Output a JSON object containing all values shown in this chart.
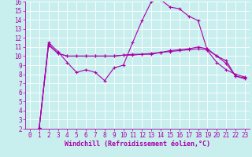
{
  "xlabel": "Windchill (Refroidissement éolien,°C)",
  "xlim": [
    -0.5,
    23.5
  ],
  "ylim": [
    2,
    16
  ],
  "yticks": [
    2,
    3,
    4,
    5,
    6,
    7,
    8,
    9,
    10,
    11,
    12,
    13,
    14,
    15,
    16
  ],
  "xticks": [
    0,
    1,
    2,
    3,
    4,
    5,
    6,
    7,
    8,
    9,
    10,
    11,
    12,
    13,
    14,
    15,
    16,
    17,
    18,
    19,
    20,
    21,
    22,
    23
  ],
  "background_color": "#c8eeee",
  "grid_color": "#aadddd",
  "line_color": "#aa00aa",
  "line1_x": [
    1,
    2,
    3,
    4,
    5,
    6,
    7,
    8,
    9,
    10,
    11,
    12,
    13,
    14,
    15,
    16,
    17,
    18,
    19,
    20,
    21,
    22,
    23
  ],
  "line1_y": [
    2.1,
    11.5,
    10.5,
    9.3,
    8.2,
    8.5,
    8.2,
    7.3,
    8.7,
    9.0,
    11.5,
    13.9,
    16.0,
    16.2,
    15.4,
    15.2,
    14.4,
    13.9,
    10.6,
    9.3,
    8.5,
    8.0,
    7.7
  ],
  "line2_x": [
    1,
    2,
    3,
    4,
    5,
    6,
    7,
    8,
    9,
    10,
    11,
    12,
    13,
    14,
    15,
    16,
    17,
    18,
    19,
    20,
    21,
    22,
    23
  ],
  "line2_y": [
    2.1,
    11.2,
    10.3,
    10.0,
    10.0,
    10.0,
    10.0,
    10.0,
    10.0,
    10.1,
    10.1,
    10.2,
    10.2,
    10.4,
    10.6,
    10.7,
    10.8,
    11.0,
    10.8,
    10.0,
    9.2,
    7.8,
    7.5
  ],
  "line3_x": [
    1,
    2,
    3,
    4,
    5,
    6,
    7,
    8,
    9,
    10,
    11,
    12,
    13,
    14,
    15,
    16,
    17,
    18,
    19,
    20,
    21,
    22,
    23
  ],
  "line3_y": [
    2.1,
    11.3,
    10.3,
    10.0,
    10.0,
    10.0,
    10.0,
    10.0,
    10.0,
    10.1,
    10.2,
    10.2,
    10.3,
    10.4,
    10.5,
    10.6,
    10.7,
    10.8,
    10.7,
    10.0,
    9.5,
    7.8,
    7.6
  ],
  "font_color": "#aa00aa",
  "font_family": "monospace",
  "font_size": 5.5,
  "xlabel_fontsize": 6.0,
  "marker": "+",
  "marker_size": 3,
  "linewidth": 0.8
}
